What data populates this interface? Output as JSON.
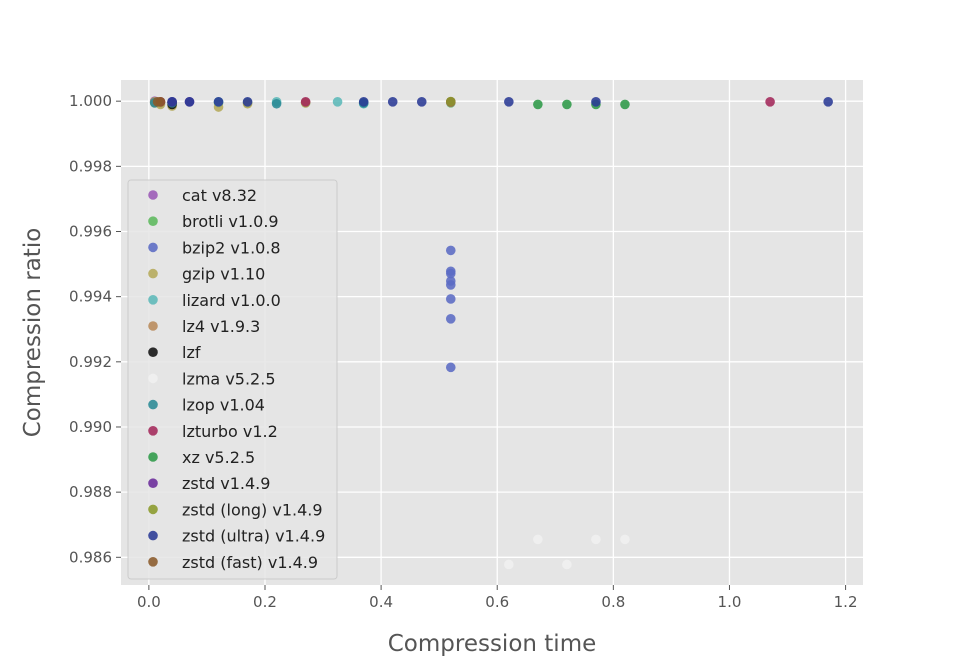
{
  "chart_data": {
    "type": "scatter",
    "title": "",
    "xlabel": "Compression time",
    "ylabel": "Compression ratio",
    "xlim": [
      -0.048,
      1.23
    ],
    "ylim": [
      0.98515,
      1.00065
    ],
    "xticks": [
      0.0,
      0.2,
      0.4,
      0.6,
      0.8,
      1.0,
      1.2
    ],
    "xtick_labels": [
      "0.0",
      "0.2",
      "0.4",
      "0.6",
      "0.8",
      "1.0",
      "1.2"
    ],
    "yticks": [
      0.986,
      0.988,
      0.99,
      0.992,
      0.994,
      0.996,
      0.998,
      1.0
    ],
    "ytick_labels": [
      "0.986",
      "0.988",
      "0.990",
      "0.992",
      "0.994",
      "0.996",
      "0.998",
      "1.000"
    ],
    "grid": true,
    "style": "ggplot",
    "legend_position": "center-left",
    "series": [
      {
        "name": "cat v8.32",
        "color": "#9b59b6",
        "points": [
          [
            0.01,
            1.0
          ]
        ]
      },
      {
        "name": "brotli v1.0.9",
        "color": "#5cb85c",
        "points": [
          [
            0.02,
            0.99995
          ],
          [
            0.04,
            0.99995
          ],
          [
            0.12,
            0.99995
          ],
          [
            0.17,
            0.99995
          ],
          [
            0.27,
            0.99995
          ],
          [
            0.37,
            0.99995
          ],
          [
            0.52,
            0.99995
          ]
        ]
      },
      {
        "name": "bzip2 v1.0.8",
        "color": "#5b6bc4",
        "points": [
          [
            0.52,
            0.99542
          ],
          [
            0.52,
            0.99478
          ],
          [
            0.52,
            0.99471
          ],
          [
            0.52,
            0.99448
          ],
          [
            0.52,
            0.99436
          ],
          [
            0.52,
            0.99393
          ],
          [
            0.52,
            0.99332
          ],
          [
            0.52,
            0.99183
          ]
        ]
      },
      {
        "name": "gzip v1.10",
        "color": "#b5aa5a",
        "points": [
          [
            0.01,
            0.99995
          ],
          [
            0.02,
            0.9999
          ],
          [
            0.04,
            0.99985
          ],
          [
            0.12,
            0.99982
          ],
          [
            0.17,
            0.99992
          ],
          [
            0.27,
            0.99995
          ],
          [
            0.52,
            0.99997
          ]
        ]
      },
      {
        "name": "lizard v1.0.0",
        "color": "#5cb8b8",
        "points": [
          [
            0.01,
            0.99998
          ],
          [
            0.04,
            0.99998
          ],
          [
            0.12,
            0.99998
          ],
          [
            0.22,
            0.99998
          ],
          [
            0.325,
            0.99998
          ],
          [
            0.37,
            0.99992
          ]
        ]
      },
      {
        "name": "lz4 v1.9.3",
        "color": "#b88a5a",
        "points": [
          [
            0.01,
            0.99998
          ],
          [
            0.02,
            0.99998
          ],
          [
            0.04,
            0.99995
          ]
        ]
      },
      {
        "name": "lzf",
        "color": "#111111",
        "points": [
          [
            0.04,
            0.99995
          ],
          [
            0.04,
            0.9999
          ]
        ]
      },
      {
        "name": "lzma v5.2.5",
        "color": "#f0f0f0",
        "points": [
          [
            0.62,
            0.98578
          ],
          [
            0.67,
            0.98655
          ],
          [
            0.72,
            0.98578
          ],
          [
            0.77,
            0.98655
          ],
          [
            0.82,
            0.98655
          ]
        ]
      },
      {
        "name": "lzop v1.04",
        "color": "#2a8a95",
        "points": [
          [
            0.01,
            0.99995
          ],
          [
            0.04,
            0.99995
          ],
          [
            0.22,
            0.99992
          ],
          [
            0.37,
            0.99994
          ]
        ]
      },
      {
        "name": "lzturbo v1.2",
        "color": "#a3285a",
        "points": [
          [
            0.02,
            0.99998
          ],
          [
            0.27,
            0.99998
          ],
          [
            0.52,
            0.99998
          ],
          [
            1.07,
            0.99998
          ]
        ]
      },
      {
        "name": "xz v5.2.5",
        "color": "#2e9a48",
        "points": [
          [
            0.67,
            0.9999
          ],
          [
            0.72,
            0.9999
          ],
          [
            0.77,
            0.9999
          ],
          [
            0.82,
            0.9999
          ]
        ]
      },
      {
        "name": "zstd v1.4.9",
        "color": "#6a2a9a",
        "points": [
          [
            0.04,
            0.99998
          ],
          [
            0.07,
            0.99998
          ]
        ]
      },
      {
        "name": "zstd (long) v1.4.9",
        "color": "#8a9a2a",
        "points": [
          [
            0.52,
            0.99999
          ]
        ]
      },
      {
        "name": "zstd (ultra) v1.4.9",
        "color": "#2a3a95",
        "points": [
          [
            0.04,
            0.99998
          ],
          [
            0.07,
            0.99998
          ],
          [
            0.12,
            0.99998
          ],
          [
            0.17,
            0.99998
          ],
          [
            0.37,
            0.99998
          ],
          [
            0.42,
            0.99998
          ],
          [
            0.47,
            0.99998
          ],
          [
            0.62,
            0.99998
          ],
          [
            0.77,
            0.99998
          ],
          [
            1.17,
            0.99998
          ]
        ]
      },
      {
        "name": "zstd (fast) v1.4.9",
        "color": "#8a5a2a",
        "points": [
          [
            0.015,
            0.99998
          ],
          [
            0.02,
            0.99998
          ]
        ]
      }
    ]
  }
}
